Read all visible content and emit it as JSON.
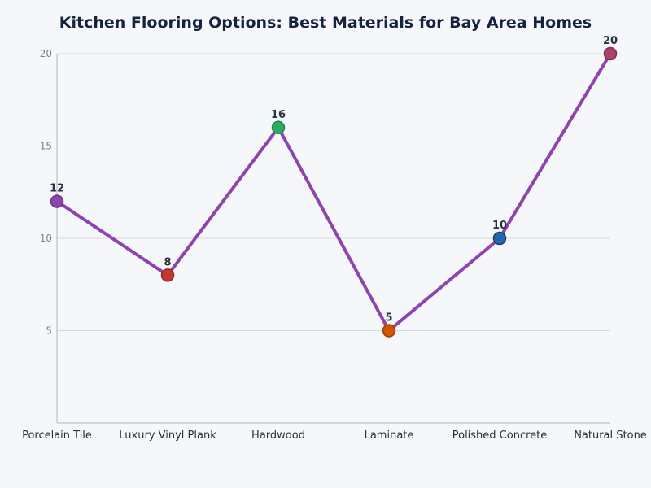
{
  "chart_data": {
    "type": "line",
    "title": "Kitchen Flooring Options: Best Materials for Bay Area Homes",
    "xlabel": "",
    "ylabel": "",
    "categories": [
      "Porcelain Tile",
      "Luxury Vinyl Plank",
      "Hardwood",
      "Laminate",
      "Polished Concrete",
      "Natural Stone"
    ],
    "series": [
      {
        "values": [
          12,
          8,
          16,
          5,
          10,
          20
        ]
      }
    ],
    "yticks": [
      "5",
      "10",
      "15",
      "20"
    ],
    "ylim": [
      0,
      20
    ],
    "grid": true,
    "legend": "none",
    "data_labels": [
      "12",
      "8",
      "16",
      "5",
      "10",
      "20"
    ],
    "colors": {
      "line": "#8e44ad",
      "points": [
        "#8e44ad",
        "#c0392b",
        "#27ae60",
        "#d35400",
        "#2067b0",
        "#a8436e"
      ],
      "point_stroke": [
        "#6c3483",
        "#922b21",
        "#1e8449",
        "#a04000",
        "#154360",
        "#7b2d52"
      ],
      "grid": "#d5d8e0",
      "axis": "#b0b4bf"
    }
  }
}
